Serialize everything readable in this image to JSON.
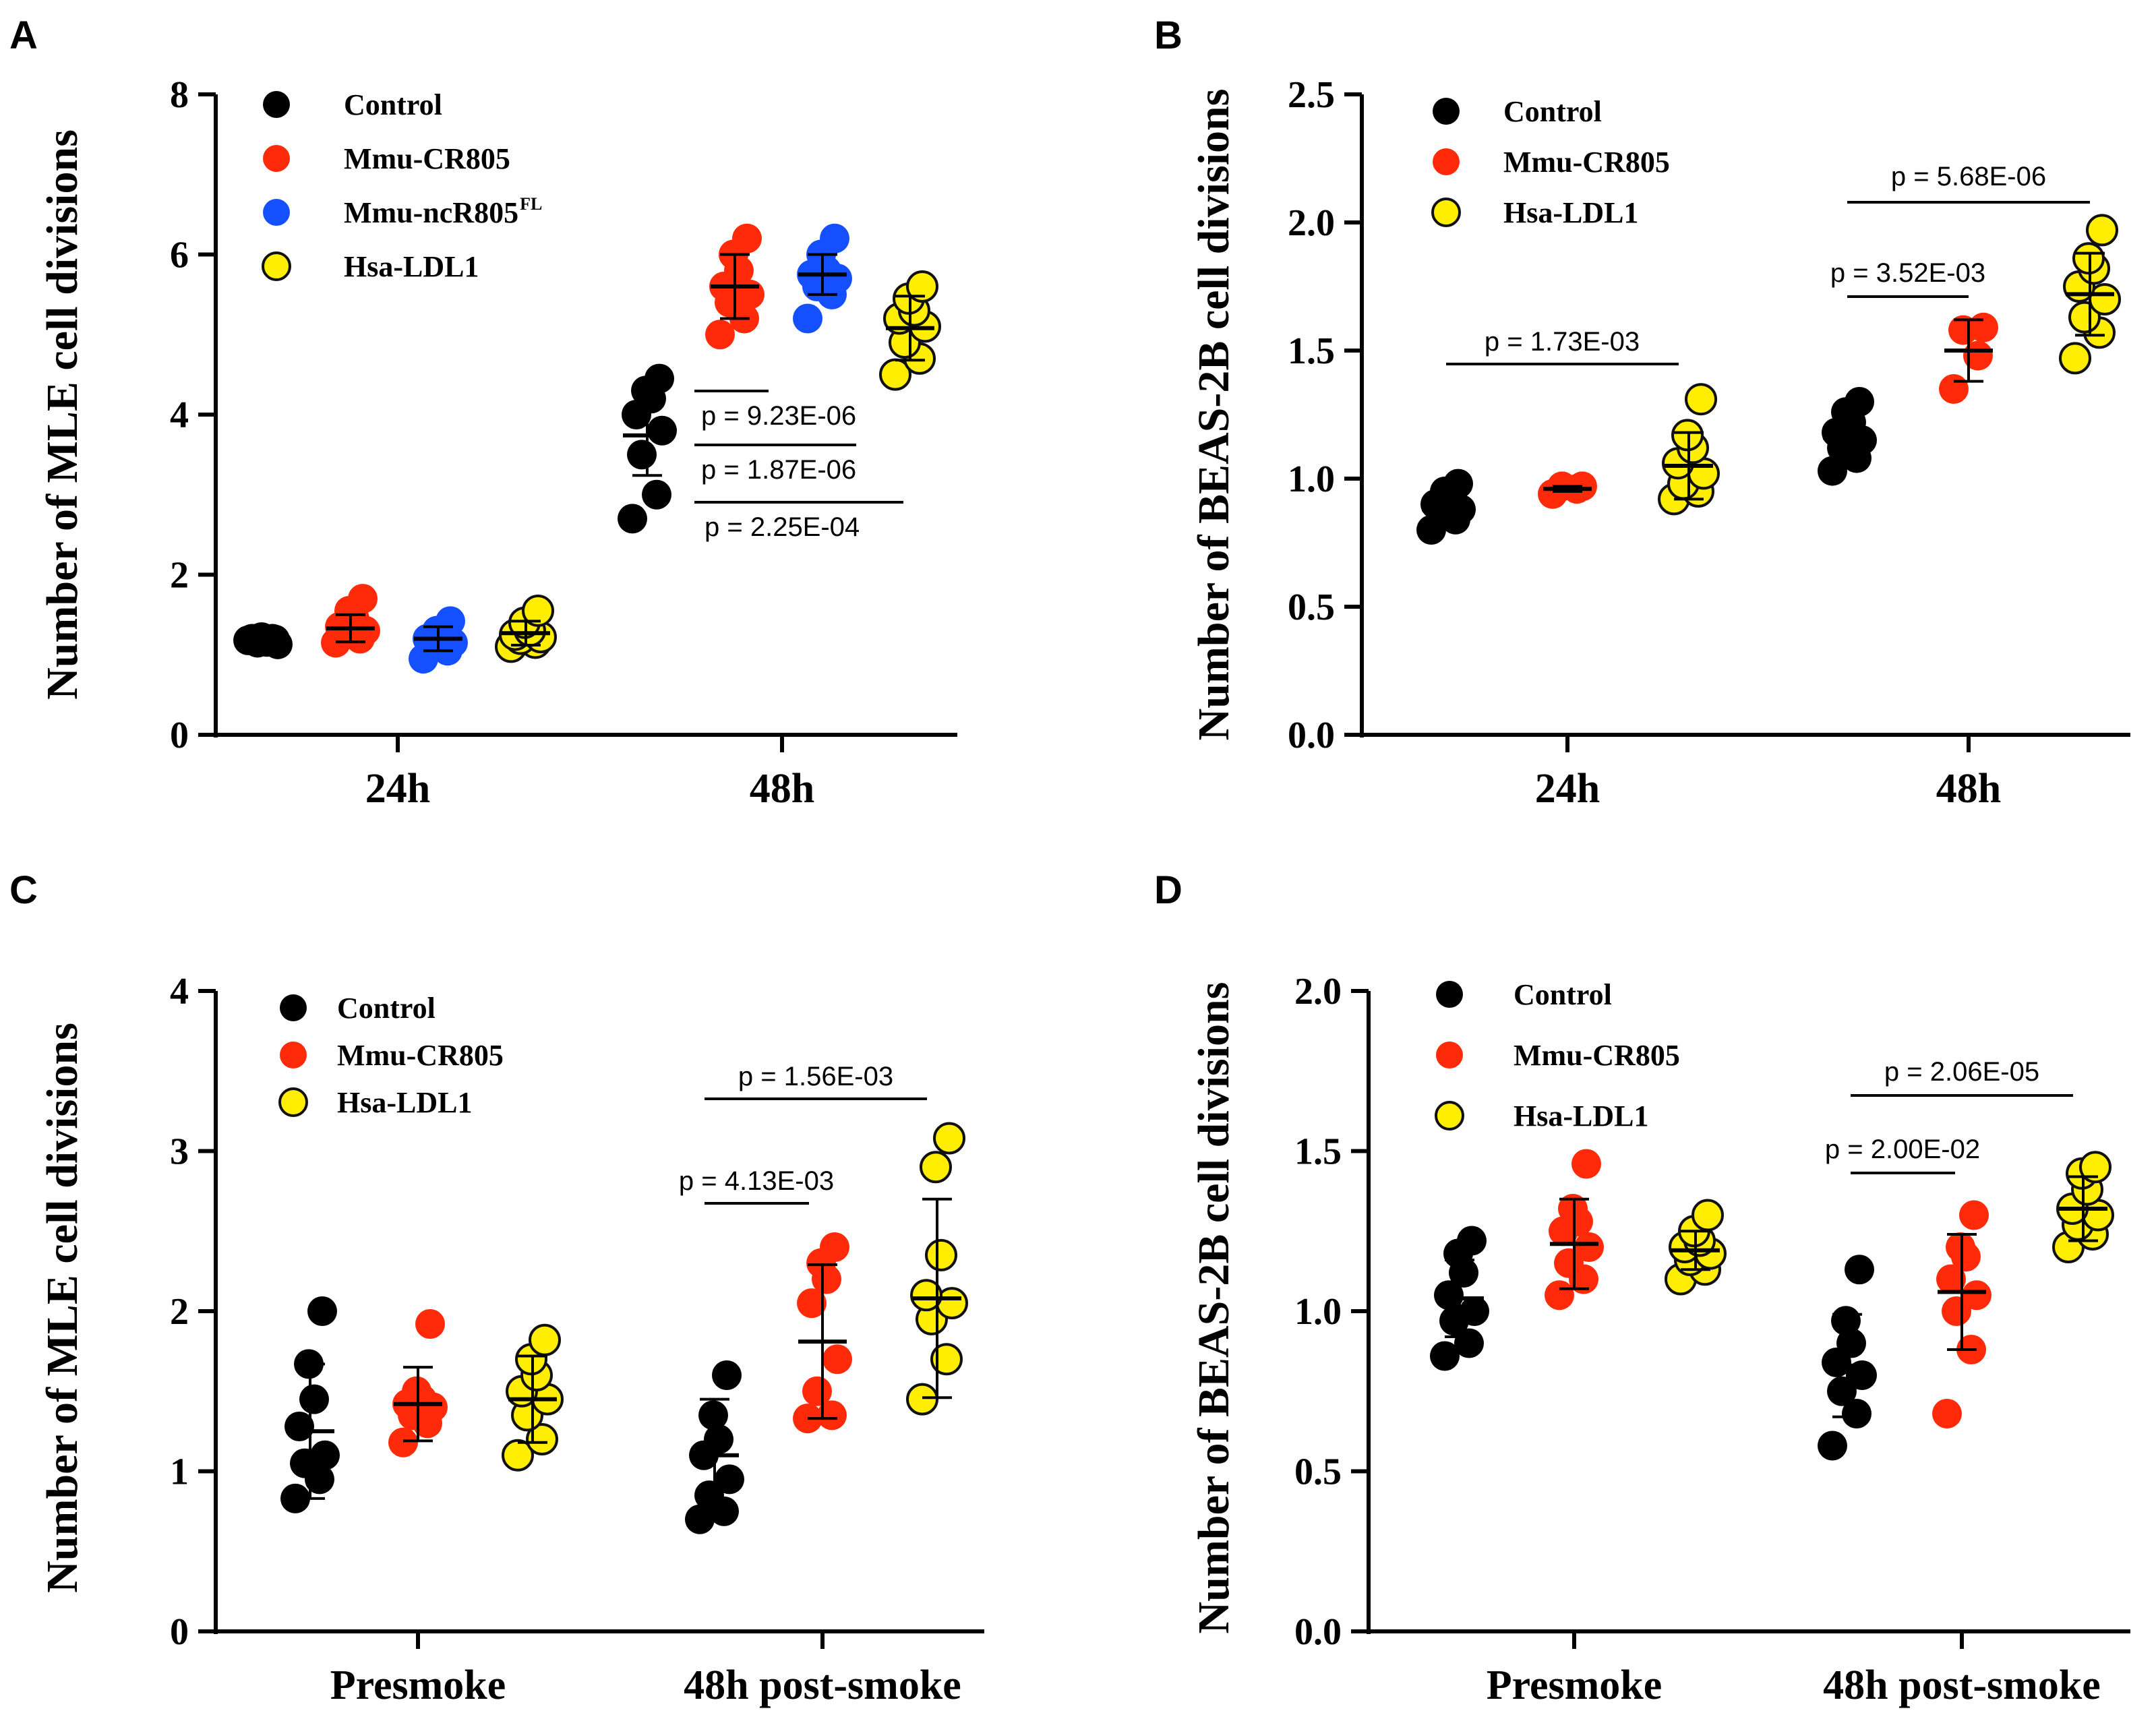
{
  "colors": {
    "control": "#000000",
    "cr805": "#ff2a0a",
    "ncr805": "#1450ff",
    "ldl1": "#ffee00",
    "outline": "#111111"
  },
  "chart_data": [
    {
      "panel": "A",
      "type": "scatter",
      "ylabel": "Number of MLE cell divisions",
      "ylim": [
        0,
        8
      ],
      "yticks": [
        "0",
        "2",
        "4",
        "6",
        "8"
      ],
      "categories": [
        "24h",
        "48h"
      ],
      "series": [
        {
          "name": "Control",
          "legend_sup": "",
          "color_key": "control",
          "outline": false,
          "groups": [
            {
              "points": [
                1.18,
                1.2,
                1.15,
                1.13,
                1.2,
                1.16,
                1.22,
                1.19
              ],
              "mean": 1.18,
              "sd": 0.03
            },
            {
              "points": [
                2.7,
                3.0,
                3.5,
                3.8,
                4.0,
                4.2,
                4.3,
                4.45
              ],
              "mean": 3.74,
              "sd": 0.5
            }
          ]
        },
        {
          "name": "Mmu-CR805",
          "legend_sup": "",
          "color_key": "cr805",
          "outline": false,
          "groups": [
            {
              "points": [
                1.15,
                1.2,
                1.25,
                1.3,
                1.35,
                1.45,
                1.55,
                1.7
              ],
              "mean": 1.33,
              "sd": 0.17
            },
            {
              "points": [
                5.0,
                5.2,
                5.4,
                5.5,
                5.6,
                5.8,
                6.0,
                6.2
              ],
              "mean": 5.6,
              "sd": 0.4
            }
          ]
        },
        {
          "name": "Mmu-ncR805",
          "legend_sup": "FL",
          "color_key": "ncr805",
          "outline": false,
          "groups": [
            {
              "points": [
                0.95,
                1.05,
                1.1,
                1.15,
                1.2,
                1.25,
                1.3,
                1.42
              ],
              "mean": 1.2,
              "sd": 0.15
            },
            {
              "points": [
                5.2,
                5.5,
                5.6,
                5.7,
                5.75,
                5.8,
                6.0,
                6.2
              ],
              "mean": 5.75,
              "sd": 0.25
            }
          ]
        },
        {
          "name": "Hsa-LDL1",
          "legend_sup": "",
          "color_key": "ldl1",
          "outline": true,
          "groups": [
            {
              "points": [
                1.1,
                1.15,
                1.2,
                1.22,
                1.25,
                1.3,
                1.4,
                1.55
              ],
              "mean": 1.27,
              "sd": 0.15
            },
            {
              "points": [
                4.5,
                4.7,
                4.9,
                5.1,
                5.2,
                5.3,
                5.45,
                5.6
              ],
              "mean": 5.08,
              "sd": 0.4
            }
          ]
        }
      ],
      "annotations": [
        {
          "text": "p = 9.23E-06"
        },
        {
          "text": "p = 1.87E-06"
        },
        {
          "text": "p = 2.25E-04"
        }
      ]
    },
    {
      "panel": "B",
      "type": "scatter",
      "ylabel": "Number of BEAS-2B cell divisions",
      "ylim": [
        0,
        2.5
      ],
      "yticks": [
        "0.0",
        "0.5",
        "1.0",
        "1.5",
        "2.0",
        "2.5"
      ],
      "categories": [
        "24h",
        "48h"
      ],
      "series": [
        {
          "name": "Control",
          "legend_sup": "",
          "color_key": "control",
          "outline": false,
          "groups": [
            {
              "points": [
                0.8,
                0.84,
                0.86,
                0.88,
                0.9,
                0.92,
                0.95,
                0.98
              ],
              "mean": 0.88,
              "sd": 0.05
            },
            {
              "points": [
                1.03,
                1.08,
                1.12,
                1.15,
                1.18,
                1.22,
                1.26,
                1.3
              ],
              "mean": 1.16,
              "sd": 0.09
            }
          ]
        },
        {
          "name": "Mmu-CR805",
          "legend_sup": "",
          "color_key": "cr805",
          "outline": false,
          "groups": [
            {
              "points": [
                0.94,
                0.96,
                0.97,
                0.97
              ],
              "mean": 0.96,
              "sd": 0.01
            },
            {
              "points": [
                1.35,
                1.48,
                1.58,
                1.59
              ],
              "mean": 1.5,
              "sd": 0.12
            }
          ]
        },
        {
          "name": "Hsa-LDL1",
          "legend_sup": "",
          "color_key": "ldl1",
          "outline": true,
          "groups": [
            {
              "points": [
                0.92,
                0.95,
                0.98,
                1.02,
                1.06,
                1.12,
                1.17,
                1.31
              ],
              "mean": 1.05,
              "sd": 0.13
            },
            {
              "points": [
                1.47,
                1.57,
                1.63,
                1.7,
                1.75,
                1.82,
                1.86,
                1.97
              ],
              "mean": 1.72,
              "sd": 0.16
            }
          ]
        }
      ],
      "annotations": [
        {
          "text": "p = 1.73E-03"
        },
        {
          "text": "p = 3.52E-03"
        },
        {
          "text": "p = 5.68E-06"
        }
      ]
    },
    {
      "panel": "C",
      "type": "scatter",
      "ylabel": "Number of MLE cell divisions",
      "ylim": [
        0,
        4
      ],
      "yticks": [
        "0",
        "1",
        "2",
        "3",
        "4"
      ],
      "categories": [
        "Presmoke",
        "48h post-smoke"
      ],
      "series": [
        {
          "name": "Control",
          "legend_sup": "",
          "color_key": "control",
          "outline": false,
          "groups": [
            {
              "points": [
                0.83,
                0.95,
                1.05,
                1.1,
                1.28,
                1.45,
                1.67,
                2.0
              ],
              "mean": 1.25,
              "sd": 0.42
            },
            {
              "points": [
                0.7,
                0.75,
                0.85,
                0.95,
                1.1,
                1.2,
                1.35,
                1.6
              ],
              "mean": 1.1,
              "sd": 0.35
            }
          ]
        },
        {
          "name": "Mmu-CR805",
          "legend_sup": "",
          "color_key": "cr805",
          "outline": false,
          "groups": [
            {
              "points": [
                1.18,
                1.3,
                1.35,
                1.4,
                1.42,
                1.45,
                1.5,
                1.92
              ],
              "mean": 1.42,
              "sd": 0.23
            },
            {
              "points": [
                1.33,
                1.35,
                1.5,
                1.7,
                2.05,
                2.2,
                2.3,
                2.4
              ],
              "mean": 1.81,
              "sd": 0.48
            }
          ]
        },
        {
          "name": "Hsa-LDL1",
          "legend_sup": "",
          "color_key": "ldl1",
          "outline": true,
          "groups": [
            {
              "points": [
                1.1,
                1.2,
                1.35,
                1.45,
                1.5,
                1.6,
                1.7,
                1.82
              ],
              "mean": 1.45,
              "sd": 0.27
            },
            {
              "points": [
                1.45,
                1.7,
                1.95,
                2.05,
                2.1,
                2.35,
                2.9,
                3.08
              ],
              "mean": 2.08,
              "sd": 0.62
            }
          ]
        }
      ],
      "annotations": [
        {
          "text": "p = 4.13E-03"
        },
        {
          "text": "p = 1.56E-03"
        }
      ]
    },
    {
      "panel": "D",
      "type": "scatter",
      "ylabel": "Number of BEAS-2B cell divisions",
      "ylim": [
        0,
        2
      ],
      "yticks": [
        "0.0",
        "0.5",
        "1.0",
        "1.5",
        "2.0"
      ],
      "categories": [
        "Presmoke",
        "48h post-smoke"
      ],
      "series": [
        {
          "name": "Control",
          "legend_sup": "",
          "color_key": "control",
          "outline": false,
          "groups": [
            {
              "points": [
                0.86,
                0.9,
                0.97,
                1.0,
                1.05,
                1.12,
                1.18,
                1.22
              ],
              "mean": 1.04,
              "sd": 0.12
            },
            {
              "points": [
                0.58,
                0.68,
                0.75,
                0.8,
                0.84,
                0.9,
                0.97,
                1.13
              ],
              "mean": 0.83,
              "sd": 0.16
            }
          ]
        },
        {
          "name": "Mmu-CR805",
          "legend_sup": "",
          "color_key": "cr805",
          "outline": false,
          "groups": [
            {
              "points": [
                1.05,
                1.1,
                1.15,
                1.2,
                1.25,
                1.28,
                1.32,
                1.46
              ],
              "mean": 1.21,
              "sd": 0.14
            },
            {
              "points": [
                0.68,
                0.88,
                1.0,
                1.05,
                1.1,
                1.17,
                1.2,
                1.3
              ],
              "mean": 1.06,
              "sd": 0.18
            }
          ]
        },
        {
          "name": "Hsa-LDL1",
          "legend_sup": "",
          "color_key": "ldl1",
          "outline": true,
          "groups": [
            {
              "points": [
                1.1,
                1.13,
                1.16,
                1.18,
                1.2,
                1.22,
                1.25,
                1.3
              ],
              "mean": 1.19,
              "sd": 0.06
            },
            {
              "points": [
                1.2,
                1.24,
                1.27,
                1.3,
                1.32,
                1.38,
                1.43,
                1.45
              ],
              "mean": 1.32,
              "sd": 0.1
            }
          ]
        }
      ],
      "annotations": [
        {
          "text": "p = 2.00E-02"
        },
        {
          "text": "p = 2.06E-05"
        }
      ]
    }
  ]
}
